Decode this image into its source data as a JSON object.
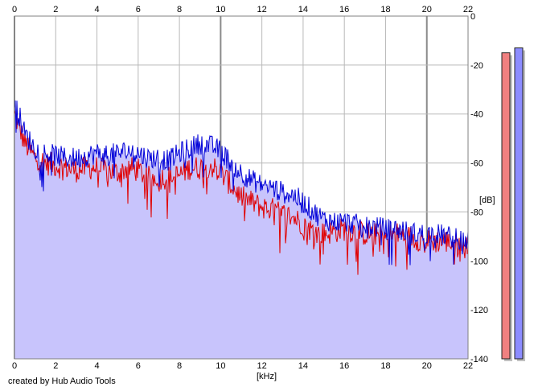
{
  "chart_data": {
    "type": "area",
    "xlabel": "[kHz]",
    "ylabel": "[dB]",
    "xlim": [
      0,
      22
    ],
    "ylim": [
      -140,
      0
    ],
    "x_ticks": [
      "0",
      "2",
      "4",
      "6",
      "8",
      "10",
      "12",
      "14",
      "16",
      "18",
      "20",
      "22"
    ],
    "y_ticks": [
      "0",
      "-20",
      "-40",
      "-60",
      "-80",
      "-100",
      "-120",
      "-140"
    ],
    "grid": true,
    "fill_color": "#c8c4fc",
    "series": [
      {
        "color": "#e00000",
        "x": [
          0,
          0.5,
          1,
          1.5,
          2,
          2.5,
          3,
          3.5,
          4,
          4.5,
          5,
          5.5,
          6,
          6.5,
          7,
          7.5,
          8,
          8.5,
          9,
          9.5,
          10,
          10.5,
          11,
          11.5,
          12,
          12.5,
          13,
          13.5,
          14,
          14.5,
          15,
          15.5,
          16,
          16.5,
          17,
          17.5,
          18,
          18.5,
          19,
          19.5,
          20,
          20.5,
          21,
          21.5,
          22
        ],
        "values": [
          -40,
          -52,
          -58,
          -60,
          -61,
          -62,
          -63,
          -62,
          -62,
          -63,
          -64,
          -62,
          -63,
          -66,
          -66,
          -66,
          -65,
          -62,
          -62,
          -61,
          -64,
          -69,
          -74,
          -76,
          -78,
          -79,
          -81,
          -82,
          -85,
          -88,
          -89,
          -88,
          -87,
          -88,
          -89,
          -89,
          -90,
          -89,
          -90,
          -91,
          -92,
          -92,
          -92,
          -93,
          -95
        ]
      },
      {
        "color": "#0000d8",
        "x": [
          0,
          0.5,
          1,
          1.5,
          2,
          2.5,
          3,
          3.5,
          4,
          4.5,
          5,
          5.5,
          6,
          6.5,
          7,
          7.5,
          8,
          8.5,
          9,
          9.5,
          10,
          10.5,
          11,
          11.5,
          12,
          12.5,
          13,
          13.5,
          14,
          14.5,
          15,
          15.5,
          16,
          16.5,
          17,
          17.5,
          18,
          18.5,
          19,
          19.5,
          20,
          20.5,
          21,
          21.5,
          22
        ],
        "values": [
          -34,
          -48,
          -54,
          -56,
          -57,
          -58,
          -58,
          -57,
          -56,
          -57,
          -56,
          -55,
          -56,
          -58,
          -58,
          -59,
          -56,
          -54,
          -52,
          -53,
          -55,
          -60,
          -64,
          -67,
          -69,
          -70,
          -72,
          -73,
          -76,
          -80,
          -83,
          -84,
          -84,
          -85,
          -86,
          -86,
          -87,
          -87,
          -88,
          -89,
          -89,
          -89,
          -90,
          -91,
          -92
        ]
      }
    ],
    "meters": [
      {
        "color": "#f08080",
        "level_db": -15
      },
      {
        "color": "#8c8cff",
        "level_db": -13
      }
    ]
  },
  "footer": {
    "credit": "created by Hub Audio Tools"
  }
}
